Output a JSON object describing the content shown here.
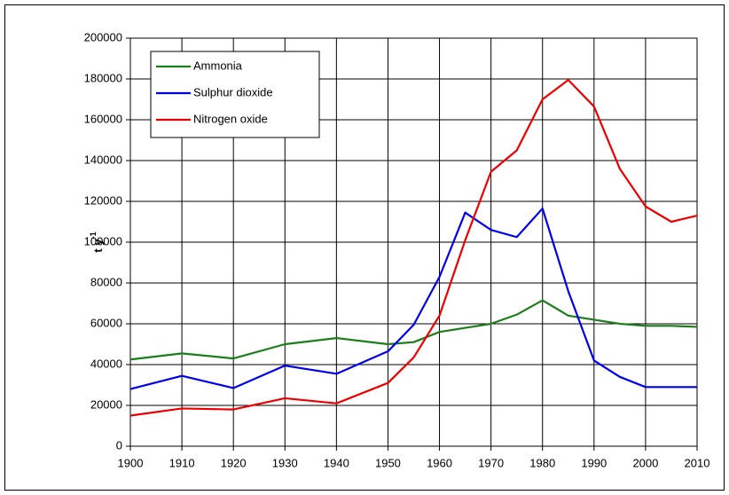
{
  "chart_data": {
    "type": "line",
    "ylabel": "t y",
    "ylabel_superscript": "-1",
    "x": [
      1900,
      1910,
      1920,
      1930,
      1940,
      1950,
      1955,
      1960,
      1965,
      1970,
      1975,
      1980,
      1985,
      1990,
      1995,
      2000,
      2005,
      2010
    ],
    "series": [
      {
        "name": "Ammonia",
        "color": "#1a7f1a",
        "values": [
          42500,
          45500,
          43000,
          50000,
          53000,
          50000,
          51000,
          56000,
          58000,
          60000,
          64500,
          71500,
          64000,
          62000,
          60000,
          59000,
          59000,
          58500
        ]
      },
      {
        "name": "Sulphur dioxide",
        "color": "#0000ee",
        "values": [
          28000,
          34500,
          28500,
          39500,
          35500,
          46500,
          59500,
          83000,
          114500,
          106000,
          102500,
          116500,
          76000,
          42000,
          34000,
          29000,
          29000,
          29000
        ]
      },
      {
        "name": "Nitrogen oxide",
        "color": "#ee0000",
        "values": [
          15000,
          18500,
          18000,
          23500,
          21000,
          31000,
          43500,
          64000,
          101000,
          134500,
          145000,
          170000,
          179500,
          166500,
          136000,
          117500,
          110000,
          113000
        ]
      }
    ],
    "xlim": [
      1900,
      2010
    ],
    "xticks": [
      1900,
      1910,
      1920,
      1930,
      1940,
      1950,
      1960,
      1970,
      1980,
      1990,
      2000,
      2010
    ],
    "ylim": [
      0,
      200000
    ],
    "yticks": [
      0,
      20000,
      40000,
      60000,
      80000,
      100000,
      120000,
      140000,
      160000,
      180000,
      200000
    ],
    "grid": true,
    "legend": "upper left"
  }
}
